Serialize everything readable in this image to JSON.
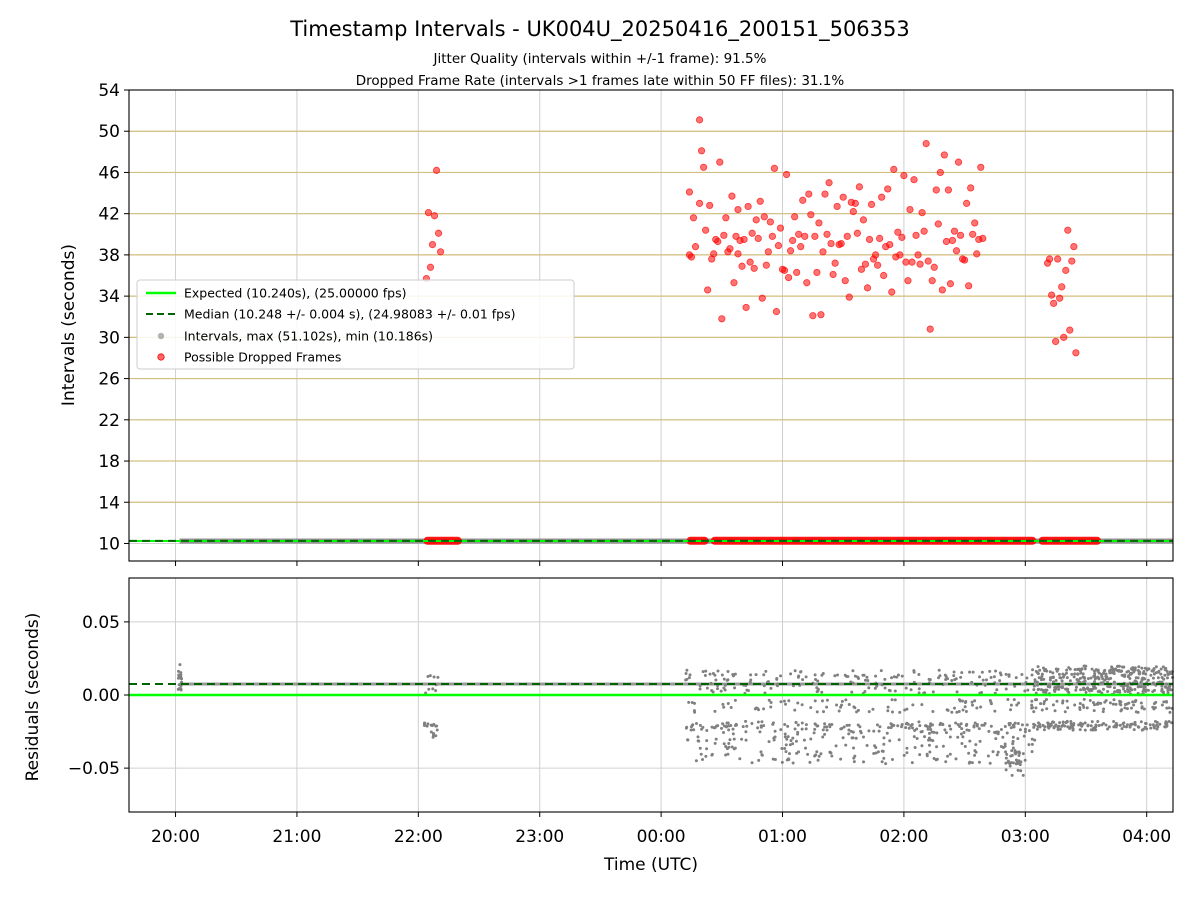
{
  "chart_data": [
    {
      "type": "scatter",
      "panel": "intervals",
      "title": "Timestamp Intervals - UK004U_20250416_200151_506353",
      "subtitles": [
        "Jitter Quality (intervals within +/-1 frame): 91.5%",
        "Dropped Frame Rate (intervals >1 frames late within 50 FF files): 31.1%"
      ],
      "xlabel": "",
      "ylabel": "Intervals (seconds)",
      "xlim": [
        "19:37",
        "04:13"
      ],
      "ylim": [
        8.3,
        54
      ],
      "yticks": [
        10,
        14,
        18,
        22,
        26,
        30,
        34,
        38,
        42,
        46,
        50,
        54
      ],
      "xticks": [
        "20:00",
        "21:00",
        "22:00",
        "23:00",
        "00:00",
        "01:00",
        "02:00",
        "03:00",
        "04:00"
      ],
      "grid": true,
      "horizontal_reference_lines": [
        14,
        18,
        22,
        26,
        30,
        34,
        38,
        42,
        46,
        50
      ],
      "legend_position": "center-left",
      "legend": [
        "Expected (10.240s), (25.00000 fps)",
        "Median (10.248 +/- 0.004 s), (24.98083 +/- 0.01 fps)",
        "Intervals, max (51.102s), min (10.186s)",
        "Possible Dropped Frames"
      ],
      "expected_interval": 10.24,
      "median_interval": 10.248,
      "series": [
        {
          "name": "Intervals, max (51.102s), min (10.186s)",
          "color": "#808080",
          "segments": [
            [
              "20:02",
              "04:13"
            ]
          ],
          "value_range": [
            10.186,
            10.29
          ]
        },
        {
          "name": "Possible Dropped Frames",
          "color": "#ff0000",
          "baseline_segments": [
            [
              "22:04",
              "22:20"
            ],
            [
              "00:14",
              "00:22"
            ],
            [
              "00:26",
              "03:04"
            ],
            [
              "03:08",
              "03:36"
            ]
          ],
          "baseline_value": 10.26,
          "points": [
            [
              "22:04",
              35.7
            ],
            [
              "22:05",
              42.1
            ],
            [
              "22:06",
              36.8
            ],
            [
              "22:07",
              39.0
            ],
            [
              "22:08",
              41.8
            ],
            [
              "22:09",
              46.2
            ],
            [
              "22:10",
              40.1
            ],
            [
              "22:11",
              38.3
            ],
            [
              "00:14",
              38.0
            ],
            [
              "00:14",
              44.1
            ],
            [
              "00:15",
              37.8
            ],
            [
              "00:16",
              41.6
            ],
            [
              "00:17",
              38.8
            ],
            [
              "00:19",
              43.0
            ],
            [
              "00:19",
              51.1
            ],
            [
              "00:20",
              48.1
            ],
            [
              "00:21",
              46.5
            ],
            [
              "00:22",
              40.4
            ],
            [
              "00:23",
              34.6
            ],
            [
              "00:24",
              42.8
            ],
            [
              "00:25",
              37.6
            ],
            [
              "00:26",
              38.1
            ],
            [
              "00:27",
              39.5
            ],
            [
              "00:28",
              39.3
            ],
            [
              "00:29",
              47.0
            ],
            [
              "00:30",
              31.8
            ],
            [
              "00:31",
              39.9
            ],
            [
              "00:32",
              41.6
            ],
            [
              "00:33",
              38.3
            ],
            [
              "00:34",
              38.6
            ],
            [
              "00:35",
              43.7
            ],
            [
              "00:36",
              35.3
            ],
            [
              "00:37",
              39.8
            ],
            [
              "00:38",
              42.4
            ],
            [
              "00:38",
              38.1
            ],
            [
              "00:39",
              39.4
            ],
            [
              "00:40",
              36.9
            ],
            [
              "00:41",
              39.5
            ],
            [
              "00:42",
              32.9
            ],
            [
              "00:43",
              42.7
            ],
            [
              "00:44",
              37.3
            ],
            [
              "00:45",
              40.1
            ],
            [
              "00:46",
              36.7
            ],
            [
              "00:47",
              41.4
            ],
            [
              "00:48",
              39.6
            ],
            [
              "00:49",
              43.2
            ],
            [
              "00:50",
              33.8
            ],
            [
              "00:51",
              41.7
            ],
            [
              "00:52",
              37.0
            ],
            [
              "00:53",
              38.3
            ],
            [
              "00:54",
              41.2
            ],
            [
              "00:55",
              39.8
            ],
            [
              "00:56",
              46.4
            ],
            [
              "00:57",
              32.5
            ],
            [
              "00:58",
              38.9
            ],
            [
              "00:59",
              40.6
            ],
            [
              "01:00",
              36.6
            ],
            [
              "01:01",
              36.5
            ],
            [
              "01:02",
              45.8
            ],
            [
              "01:03",
              35.8
            ],
            [
              "01:04",
              38.4
            ],
            [
              "01:05",
              39.4
            ],
            [
              "01:06",
              41.7
            ],
            [
              "01:07",
              36.3
            ],
            [
              "01:08",
              40.0
            ],
            [
              "01:09",
              38.8
            ],
            [
              "01:10",
              43.3
            ],
            [
              "01:11",
              39.8
            ],
            [
              "01:12",
              35.3
            ],
            [
              "01:13",
              43.9
            ],
            [
              "01:14",
              41.9
            ],
            [
              "01:15",
              32.1
            ],
            [
              "01:16",
              39.8
            ],
            [
              "01:17",
              36.3
            ],
            [
              "01:18",
              41.1
            ],
            [
              "01:19",
              32.2
            ],
            [
              "01:20",
              38.3
            ],
            [
              "01:21",
              43.9
            ],
            [
              "01:22",
              40.0
            ],
            [
              "01:23",
              45.0
            ],
            [
              "01:24",
              39.1
            ],
            [
              "01:25",
              36.1
            ],
            [
              "01:26",
              37.2
            ],
            [
              "01:27",
              42.7
            ],
            [
              "01:28",
              39.0
            ],
            [
              "01:29",
              39.1
            ],
            [
              "01:30",
              43.6
            ],
            [
              "01:31",
              35.5
            ],
            [
              "01:32",
              39.8
            ],
            [
              "01:33",
              33.9
            ],
            [
              "01:34",
              43.1
            ],
            [
              "01:35",
              42.2
            ],
            [
              "01:36",
              43.0
            ],
            [
              "01:37",
              40.1
            ],
            [
              "01:38",
              44.6
            ],
            [
              "01:39",
              36.6
            ],
            [
              "01:40",
              41.4
            ],
            [
              "01:41",
              37.1
            ],
            [
              "01:42",
              34.8
            ],
            [
              "01:43",
              39.5
            ],
            [
              "01:44",
              42.9
            ],
            [
              "01:45",
              37.6
            ],
            [
              "01:46",
              38.0
            ],
            [
              "01:47",
              37.0
            ],
            [
              "01:48",
              39.6
            ],
            [
              "01:49",
              43.6
            ],
            [
              "01:50",
              36.0
            ],
            [
              "01:51",
              38.8
            ],
            [
              "01:52",
              44.4
            ],
            [
              "01:53",
              39.0
            ],
            [
              "01:54",
              34.4
            ],
            [
              "01:55",
              46.3
            ],
            [
              "01:56",
              37.8
            ],
            [
              "01:57",
              40.2
            ],
            [
              "01:58",
              38.0
            ],
            [
              "01:59",
              39.7
            ],
            [
              "02:00",
              45.7
            ],
            [
              "02:01",
              37.3
            ],
            [
              "02:02",
              35.5
            ],
            [
              "02:03",
              42.4
            ],
            [
              "02:04",
              37.3
            ],
            [
              "02:05",
              45.3
            ],
            [
              "02:06",
              39.9
            ],
            [
              "02:07",
              38.0
            ],
            [
              "02:08",
              37.1
            ],
            [
              "02:09",
              42.1
            ],
            [
              "02:10",
              40.3
            ],
            [
              "02:11",
              48.8
            ],
            [
              "02:12",
              37.4
            ],
            [
              "02:13",
              30.8
            ],
            [
              "02:14",
              35.5
            ],
            [
              "02:15",
              36.8
            ],
            [
              "02:16",
              44.3
            ],
            [
              "02:17",
              41.0
            ],
            [
              "02:18",
              46.0
            ],
            [
              "02:19",
              34.6
            ],
            [
              "02:20",
              47.7
            ],
            [
              "02:21",
              39.3
            ],
            [
              "02:22",
              44.3
            ],
            [
              "02:23",
              35.2
            ],
            [
              "02:24",
              39.4
            ],
            [
              "02:25",
              40.3
            ],
            [
              "02:26",
              38.4
            ],
            [
              "02:27",
              47.0
            ],
            [
              "02:28",
              39.9
            ],
            [
              "02:29",
              37.6
            ],
            [
              "02:30",
              37.5
            ],
            [
              "02:31",
              43.0
            ],
            [
              "02:32",
              35.0
            ],
            [
              "02:33",
              44.5
            ],
            [
              "02:34",
              40.0
            ],
            [
              "02:35",
              41.1
            ],
            [
              "02:36",
              38.1
            ],
            [
              "02:37",
              39.5
            ],
            [
              "02:38",
              46.5
            ],
            [
              "02:39",
              39.6
            ],
            [
              "03:11",
              37.2
            ],
            [
              "03:12",
              37.6
            ],
            [
              "03:13",
              34.1
            ],
            [
              "03:14",
              33.3
            ],
            [
              "03:15",
              29.6
            ],
            [
              "03:16",
              37.6
            ],
            [
              "03:17",
              33.8
            ],
            [
              "03:18",
              34.9
            ],
            [
              "03:19",
              30.0
            ],
            [
              "03:20",
              36.5
            ],
            [
              "03:21",
              40.4
            ],
            [
              "03:22",
              30.7
            ],
            [
              "03:23",
              37.4
            ],
            [
              "03:24",
              38.8
            ],
            [
              "03:25",
              28.5
            ]
          ]
        }
      ]
    },
    {
      "type": "scatter",
      "panel": "residuals",
      "title": "",
      "xlabel": "Time (UTC)",
      "ylabel": "Residuals (seconds)",
      "xlim": [
        "19:37",
        "04:13"
      ],
      "ylim": [
        -0.08,
        0.08
      ],
      "yticks": [
        -0.05,
        0.0,
        0.05
      ],
      "ytick_labels": [
        "−0.05",
        "0.00",
        "0.05"
      ],
      "xticks": [
        "20:00",
        "21:00",
        "22:00",
        "23:00",
        "00:00",
        "01:00",
        "02:00",
        "03:00",
        "04:00"
      ],
      "grid": true,
      "expected_residual": 0.0,
      "median_residual": 0.0075,
      "series": [
        {
          "name": "Residuals",
          "color": "#808080",
          "baseline_segments": [
            [
              "20:02",
              "04:13"
            ]
          ],
          "baseline_value": 0.0075,
          "clusters": [
            {
              "x_range": [
                "20:01",
                "20:03"
              ],
              "y_values": [
                0.02,
                0.015,
                0.012,
                0.01,
                0.008,
                0.005,
                0.003
              ]
            },
            {
              "x_range": [
                "22:03",
                "22:10"
              ],
              "y_values": [
                0.015,
                0.012,
                -0.02,
                -0.021,
                -0.022,
                -0.027,
                0.005,
                0.003
              ]
            },
            {
              "x_range": [
                "00:12",
                "03:05"
              ],
              "y_values": [
                0.012,
                0.015,
                0.008,
                0.003,
                -0.005,
                -0.01,
                -0.02,
                -0.021,
                -0.022,
                -0.025,
                -0.03,
                -0.035,
                -0.04,
                -0.045
              ]
            },
            {
              "x_range": [
                "02:50",
                "02:59"
              ],
              "y_values": [
                -0.045,
                -0.047,
                -0.053,
                -0.04
              ]
            },
            {
              "x_range": [
                "03:03",
                "04:13"
              ],
              "y_values": [
                0.018,
                0.016,
                0.013,
                0.01,
                0.007,
                0.004,
                0.002,
                -0.005,
                -0.01,
                -0.02,
                -0.022
              ]
            }
          ]
        }
      ]
    }
  ],
  "colors": {
    "expected": "#00ff00",
    "median": "#006400",
    "intervals": "#808080",
    "dropped": "#ff0000",
    "reference_lines": "#d4c080",
    "grid": "#d0d0d0"
  }
}
